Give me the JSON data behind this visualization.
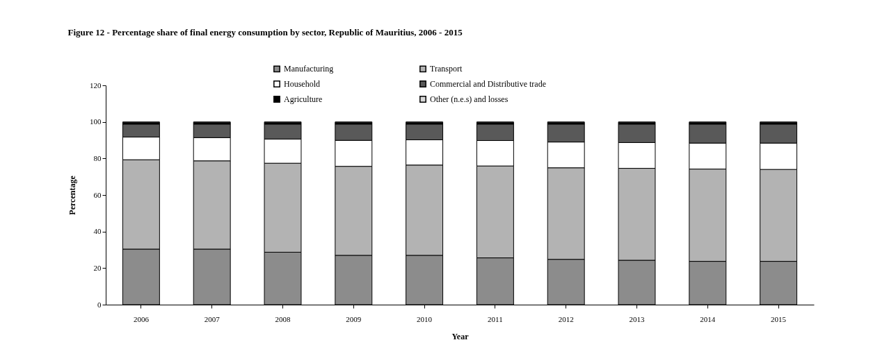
{
  "chart_data": {
    "type": "bar",
    "stacked": true,
    "title": "Figure 12 - Percentage share of final energy consumption by sector, Republic of Mauritius, 2006 - 2015",
    "xlabel": "Year",
    "ylabel": "Percentage",
    "categories": [
      "2006",
      "2007",
      "2008",
      "2009",
      "2010",
      "2011",
      "2012",
      "2013",
      "2014",
      "2015"
    ],
    "series": [
      {
        "name": "Manufacturing",
        "color": "#8c8c8c",
        "values": [
          30.4,
          30.4,
          28.7,
          27.0,
          27.0,
          25.6,
          24.8,
          24.3,
          23.7,
          23.7
        ]
      },
      {
        "name": "Transport",
        "color": "#b3b3b3",
        "values": [
          48.9,
          48.3,
          48.7,
          48.7,
          49.4,
          50.3,
          50.1,
          50.3,
          50.5,
          50.3
        ]
      },
      {
        "name": "Household",
        "color": "#ffffff",
        "values": [
          12.4,
          12.7,
          13.2,
          14.2,
          13.8,
          13.9,
          14.1,
          14.1,
          14.2,
          14.4
        ]
      },
      {
        "name": "Commercial and Distributive trade",
        "color": "#595959",
        "values": [
          7.1,
          7.4,
          8.2,
          8.9,
          8.6,
          9.0,
          9.8,
          10.1,
          10.4,
          10.4
        ]
      },
      {
        "name": "Agriculture",
        "color": "#000000",
        "values": [
          0.8,
          0.8,
          0.8,
          0.8,
          0.8,
          0.8,
          0.8,
          0.8,
          0.8,
          0.8
        ]
      },
      {
        "name": "Other (n.e.s) and losses",
        "color": "#d9d9d9",
        "values": [
          0.4,
          0.4,
          0.4,
          0.4,
          0.4,
          0.4,
          0.4,
          0.4,
          0.4,
          0.4
        ]
      }
    ],
    "ylim": [
      0,
      120
    ],
    "yticks": [
      0,
      20,
      40,
      60,
      80,
      100,
      120
    ],
    "grid": false,
    "legend": "top"
  }
}
